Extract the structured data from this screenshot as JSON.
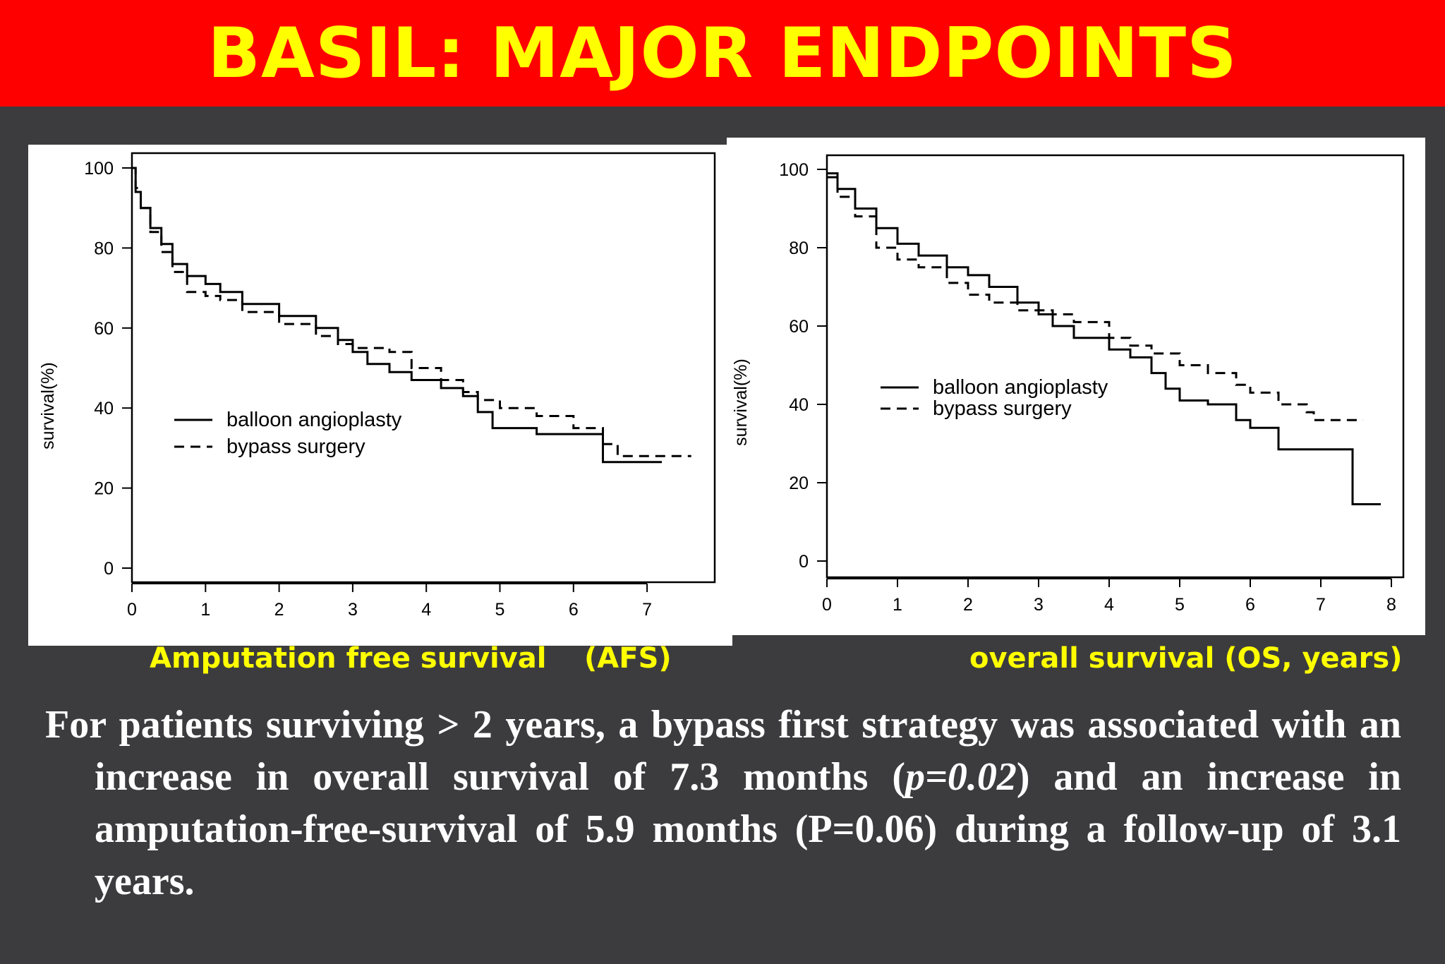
{
  "slide": {
    "title": "BASIL: MAJOR ENDPOINTS",
    "caption_afs": "Amputation free survival",
    "caption_afs_abbrev": "(AFS)",
    "caption_os": "overall survival (OS, years)",
    "summary": {
      "part1": "For patients surviving > 2 years, a bypass first strategy was associated with an increase in overall survival of 7.3 months (",
      "p_value": "p=0.02",
      "part2": ") and an increase in amputation-free-survival of 5.9 months (P=0.06) during a follow-up of 3.1 years."
    },
    "colors": {
      "title_bar": "#ff0000",
      "title_text": "#ffff00",
      "background": "#3c3c3e",
      "caption": "#ffff00",
      "summary": "#ffffff"
    }
  },
  "chart_data": [
    {
      "type": "line",
      "caption": "Amputation free survival (AFS)",
      "ylabel": "survival(%)",
      "xlabel": "",
      "xlim": [
        0,
        8
      ],
      "ylim": [
        0,
        100
      ],
      "x_ticks": [
        "0",
        "1",
        "2",
        "3",
        "4",
        "5",
        "6",
        "7"
      ],
      "y_ticks": [
        "0",
        "20",
        "40",
        "60",
        "80",
        "100"
      ],
      "legend": {
        "placement": "center-left",
        "entries": [
          "balloon angioplasty",
          "bypass surgery"
        ]
      },
      "grid": false,
      "series": [
        {
          "name": "balloon angioplasty",
          "style": "solid",
          "points": [
            [
              0,
              100
            ],
            [
              0.05,
              94
            ],
            [
              0.12,
              90
            ],
            [
              0.25,
              85
            ],
            [
              0.4,
              81
            ],
            [
              0.55,
              76
            ],
            [
              0.75,
              73
            ],
            [
              1.0,
              71
            ],
            [
              1.2,
              69
            ],
            [
              1.5,
              66
            ],
            [
              2.0,
              63
            ],
            [
              2.5,
              60
            ],
            [
              2.8,
              57
            ],
            [
              3.0,
              54
            ],
            [
              3.2,
              51
            ],
            [
              3.5,
              49
            ],
            [
              3.8,
              47
            ],
            [
              4.2,
              45
            ],
            [
              4.5,
              43
            ],
            [
              4.7,
              39
            ],
            [
              4.9,
              35
            ],
            [
              5.5,
              33.5
            ],
            [
              6.4,
              33.5
            ],
            [
              6.4,
              26.5
            ],
            [
              7.2,
              26.5
            ]
          ]
        },
        {
          "name": "bypass surgery",
          "style": "dashed",
          "points": [
            [
              0,
              100
            ],
            [
              0.05,
              95
            ],
            [
              0.12,
              90
            ],
            [
              0.25,
              84
            ],
            [
              0.4,
              79
            ],
            [
              0.55,
              74
            ],
            [
              0.75,
              69
            ],
            [
              1.0,
              68
            ],
            [
              1.2,
              67
            ],
            [
              1.5,
              64
            ],
            [
              2.0,
              61
            ],
            [
              2.5,
              58
            ],
            [
              2.8,
              56
            ],
            [
              3.0,
              55
            ],
            [
              3.2,
              55
            ],
            [
              3.5,
              54
            ],
            [
              3.8,
              50
            ],
            [
              4.2,
              47
            ],
            [
              4.5,
              44
            ],
            [
              4.7,
              42
            ],
            [
              5.0,
              40
            ],
            [
              5.5,
              38
            ],
            [
              6.0,
              35
            ],
            [
              6.4,
              31
            ],
            [
              6.6,
              28
            ],
            [
              7.6,
              28
            ]
          ]
        }
      ]
    },
    {
      "type": "line",
      "caption": "overall survival (OS, years)",
      "ylabel": "survival(%)",
      "xlabel": "",
      "xlim": [
        0,
        8.15
      ],
      "ylim": [
        0,
        100
      ],
      "x_ticks": [
        "0",
        "1",
        "2",
        "3",
        "4",
        "5",
        "6",
        "7",
        "8"
      ],
      "y_ticks": [
        "0",
        "20",
        "40",
        "60",
        "80",
        "100"
      ],
      "legend": {
        "placement": "center-right",
        "entries": [
          "balloon angioplasty",
          "bypass surgery"
        ]
      },
      "grid": false,
      "series": [
        {
          "name": "balloon angioplasty",
          "style": "solid",
          "points": [
            [
              0,
              99
            ],
            [
              0.15,
              95
            ],
            [
              0.4,
              90
            ],
            [
              0.7,
              85
            ],
            [
              1.0,
              81
            ],
            [
              1.3,
              78
            ],
            [
              1.7,
              75
            ],
            [
              2.0,
              73
            ],
            [
              2.3,
              70
            ],
            [
              2.7,
              66
            ],
            [
              3.0,
              63
            ],
            [
              3.2,
              60
            ],
            [
              3.5,
              57
            ],
            [
              4.0,
              54
            ],
            [
              4.3,
              52
            ],
            [
              4.6,
              48
            ],
            [
              4.8,
              44
            ],
            [
              5.0,
              41
            ],
            [
              5.4,
              40
            ],
            [
              5.8,
              36
            ],
            [
              6.0,
              34
            ],
            [
              6.4,
              34
            ],
            [
              6.4,
              28.5
            ],
            [
              7.45,
              28.5
            ],
            [
              7.45,
              14.5
            ],
            [
              7.85,
              14.5
            ]
          ]
        },
        {
          "name": "bypass surgery",
          "style": "dashed",
          "points": [
            [
              0,
              98
            ],
            [
              0.15,
              93
            ],
            [
              0.4,
              88
            ],
            [
              0.7,
              80
            ],
            [
              1.0,
              77
            ],
            [
              1.3,
              75
            ],
            [
              1.7,
              71
            ],
            [
              2.0,
              68
            ],
            [
              2.3,
              66
            ],
            [
              2.7,
              64
            ],
            [
              3.0,
              64
            ],
            [
              3.2,
              63
            ],
            [
              3.5,
              61
            ],
            [
              4.0,
              57
            ],
            [
              4.3,
              55
            ],
            [
              4.6,
              53
            ],
            [
              5.0,
              50
            ],
            [
              5.4,
              48
            ],
            [
              5.8,
              45
            ],
            [
              6.0,
              43
            ],
            [
              6.4,
              40
            ],
            [
              6.8,
              38
            ],
            [
              6.9,
              36
            ],
            [
              7.6,
              36
            ]
          ]
        }
      ]
    }
  ]
}
